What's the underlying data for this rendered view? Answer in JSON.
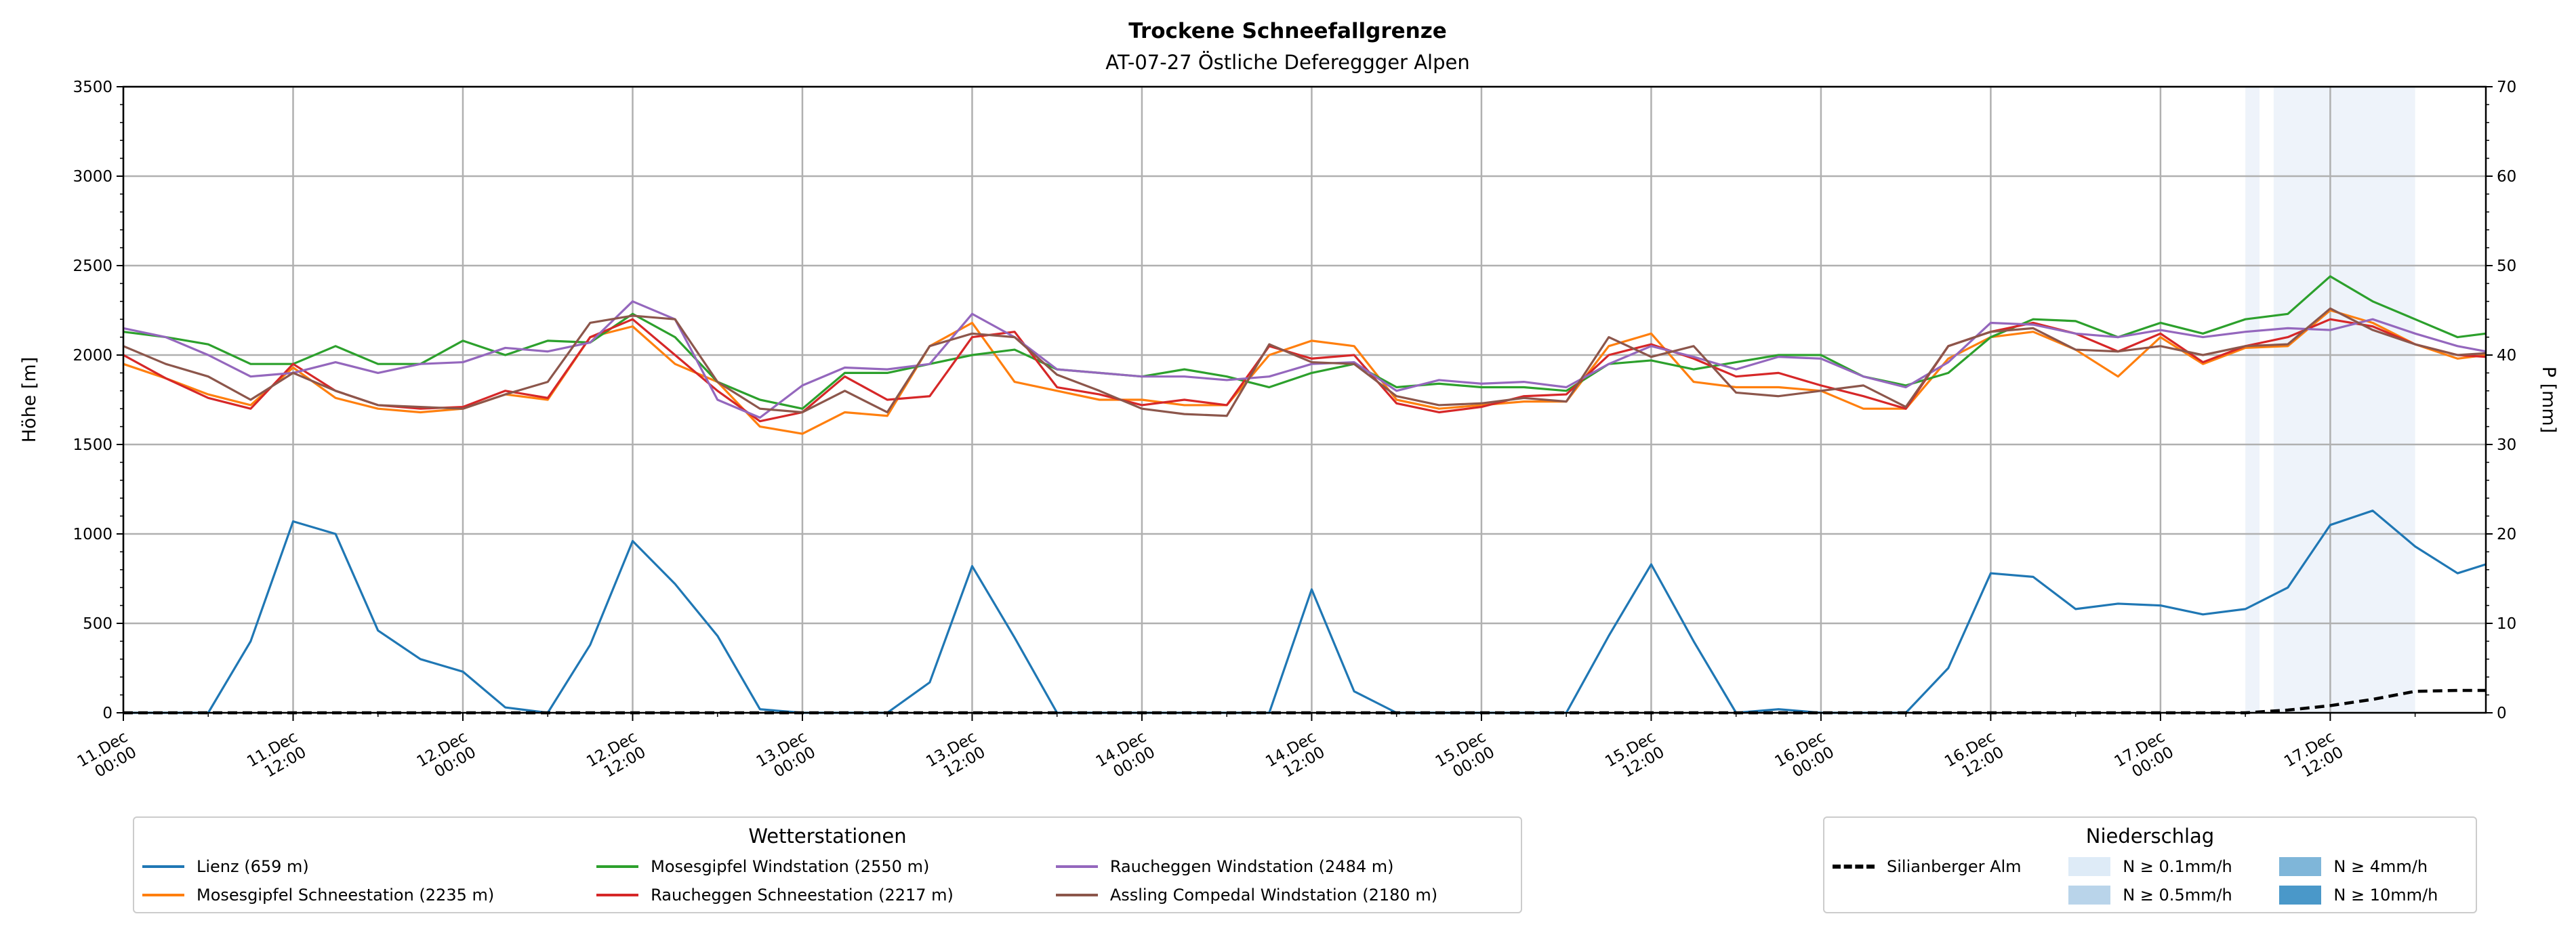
{
  "chart_data": {
    "type": "line",
    "title": "Trockene Schneefallgrenze",
    "subtitle": "AT-07-27 Östliche Defereggger Alpen",
    "ylabel": "Höhe [m]",
    "y2label": "P [mm]",
    "ylim": [
      0,
      3500
    ],
    "y2lim": [
      0,
      70
    ],
    "yticks": [
      0,
      500,
      1000,
      1500,
      2000,
      2500,
      3000,
      3500
    ],
    "y2ticks": [
      0,
      10,
      20,
      30,
      40,
      50,
      60,
      70
    ],
    "xlim_hours": [
      0,
      167
    ],
    "xticks": [
      {
        "h": 0,
        "l1": "11.Dec",
        "l2": "00:00"
      },
      {
        "h": 12,
        "l1": "11.Dec",
        "l2": "12:00"
      },
      {
        "h": 24,
        "l1": "12.Dec",
        "l2": "00:00"
      },
      {
        "h": 36,
        "l1": "12.Dec",
        "l2": "12:00"
      },
      {
        "h": 48,
        "l1": "13.Dec",
        "l2": "00:00"
      },
      {
        "h": 60,
        "l1": "13.Dec",
        "l2": "12:00"
      },
      {
        "h": 72,
        "l1": "14.Dec",
        "l2": "00:00"
      },
      {
        "h": 84,
        "l1": "14.Dec",
        "l2": "12:00"
      },
      {
        "h": 96,
        "l1": "15.Dec",
        "l2": "00:00"
      },
      {
        "h": 108,
        "l1": "15.Dec",
        "l2": "12:00"
      },
      {
        "h": 120,
        "l1": "16.Dec",
        "l2": "00:00"
      },
      {
        "h": 132,
        "l1": "16.Dec",
        "l2": "12:00"
      },
      {
        "h": 144,
        "l1": "17.Dec",
        "l2": "00:00"
      },
      {
        "h": 156,
        "l1": "17.Dec",
        "l2": "12:00"
      }
    ],
    "grid": true,
    "x_hours": [
      0,
      3,
      6,
      9,
      12,
      15,
      18,
      21,
      24,
      27,
      30,
      33,
      36,
      39,
      42,
      45,
      48,
      51,
      54,
      57,
      60,
      63,
      66,
      69,
      72,
      75,
      78,
      81,
      84,
      87,
      90,
      93,
      96,
      99,
      102,
      105,
      108,
      111,
      114,
      117,
      120,
      123,
      126,
      129,
      132,
      135,
      138,
      141,
      144,
      147,
      150,
      153,
      156,
      159,
      162,
      165,
      167
    ],
    "series": [
      {
        "name": "Lienz (659 m)",
        "color": "#1f77b4",
        "values": [
          0,
          0,
          0,
          400,
          1070,
          1000,
          460,
          300,
          230,
          30,
          0,
          380,
          960,
          720,
          430,
          20,
          0,
          0,
          0,
          170,
          820,
          420,
          0,
          0,
          0,
          0,
          0,
          0,
          690,
          120,
          0,
          0,
          0,
          0,
          0,
          430,
          830,
          400,
          0,
          20,
          0,
          0,
          0,
          250,
          780,
          760,
          580,
          610,
          600,
          550,
          580,
          700,
          1050,
          1130,
          930,
          780,
          830
        ]
      },
      {
        "name": "Mosesgipfel Schneestation (2235 m)",
        "color": "#ff7f0e",
        "values": [
          1950,
          1870,
          1780,
          1720,
          1930,
          1760,
          1700,
          1680,
          1700,
          1780,
          1750,
          2100,
          2160,
          1950,
          1850,
          1600,
          1560,
          1680,
          1660,
          2050,
          2180,
          1850,
          1800,
          1750,
          1750,
          1720,
          1720,
          2000,
          2080,
          2050,
          1750,
          1700,
          1720,
          1740,
          1740,
          2050,
          2120,
          1850,
          1820,
          1820,
          1800,
          1700,
          1700,
          1980,
          2100,
          2130,
          2030,
          1880,
          2100,
          1950,
          2040,
          2050,
          2250,
          2180,
          2060,
          1980,
          2000
        ]
      },
      {
        "name": "Mosesgipfel Windstation (2550 m)",
        "color": "#2ca02c",
        "values": [
          2130,
          2100,
          2060,
          1950,
          1950,
          2050,
          1950,
          1950,
          2080,
          2000,
          2080,
          2070,
          2230,
          2100,
          1850,
          1750,
          1700,
          1900,
          1900,
          1950,
          2000,
          2030,
          1920,
          1900,
          1880,
          1920,
          1880,
          1820,
          1900,
          1950,
          1820,
          1840,
          1820,
          1820,
          1800,
          1950,
          1970,
          1920,
          1960,
          2000,
          2000,
          1880,
          1830,
          1900,
          2100,
          2200,
          2190,
          2100,
          2180,
          2120,
          2200,
          2230,
          2440,
          2300,
          2200,
          2100,
          2120
        ]
      },
      {
        "name": "Raucheggen Schneestation (2217 m)",
        "color": "#d62728",
        "values": [
          2000,
          1870,
          1760,
          1700,
          1950,
          1800,
          1720,
          1700,
          1710,
          1800,
          1760,
          2100,
          2200,
          2000,
          1800,
          1630,
          1680,
          1880,
          1750,
          1770,
          2100,
          2130,
          1820,
          1780,
          1720,
          1750,
          1720,
          2050,
          1980,
          2000,
          1730,
          1680,
          1710,
          1770,
          1780,
          2000,
          2060,
          1980,
          1880,
          1900,
          1830,
          1770,
          1700,
          2050,
          2130,
          2180,
          2120,
          2020,
          2120,
          1960,
          2050,
          2100,
          2200,
          2160,
          2060,
          2000,
          1990
        ]
      },
      {
        "name": "Raucheggen Windstation (2484 m)",
        "color": "#9467bd",
        "values": [
          2150,
          2100,
          2000,
          1880,
          1900,
          1960,
          1900,
          1950,
          1960,
          2040,
          2020,
          2070,
          2300,
          2200,
          1750,
          1650,
          1830,
          1930,
          1920,
          1950,
          2230,
          2100,
          1920,
          1900,
          1880,
          1880,
          1860,
          1880,
          1950,
          1960,
          1800,
          1860,
          1840,
          1850,
          1820,
          1950,
          2050,
          1990,
          1920,
          1990,
          1980,
          1880,
          1820,
          1960,
          2180,
          2170,
          2120,
          2100,
          2140,
          2100,
          2130,
          2150,
          2140,
          2200,
          2120,
          2050,
          2020
        ]
      },
      {
        "name": "Assling Compedal Windstation (2180 m)",
        "color": "#8c564b",
        "values": [
          2050,
          1950,
          1880,
          1750,
          1900,
          1800,
          1720,
          1710,
          1700,
          1780,
          1850,
          2180,
          2220,
          2200,
          1850,
          1700,
          1680,
          1800,
          1680,
          2050,
          2120,
          2100,
          1890,
          1800,
          1700,
          1670,
          1660,
          2060,
          1960,
          1950,
          1770,
          1720,
          1730,
          1760,
          1740,
          2100,
          1990,
          2050,
          1790,
          1770,
          1800,
          1830,
          1710,
          2050,
          2130,
          2150,
          2030,
          2020,
          2050,
          2000,
          2050,
          2060,
          2260,
          2140,
          2060,
          2000,
          2010
        ]
      }
    ],
    "precip_series": {
      "name": "Silianberger Alm",
      "color": "#000000",
      "axis": "right",
      "unit": "mm",
      "values": [
        0,
        0,
        0,
        0,
        0,
        0,
        0,
        0,
        0,
        0,
        0,
        0,
        0,
        0,
        0,
        0,
        0,
        0,
        0,
        0,
        0,
        0,
        0,
        0,
        0,
        0,
        0,
        0,
        0,
        0,
        0,
        0,
        0,
        0,
        0,
        0,
        0,
        0,
        0,
        0,
        0,
        0,
        0,
        0,
        0,
        0,
        0,
        0,
        0,
        0,
        0,
        0.3,
        0.8,
        1.5,
        2.4,
        2.5,
        2.5
      ]
    },
    "precip_bands": [
      {
        "from_h": 150,
        "to_h": 151,
        "class": "N ≥ 0.1mm/h"
      },
      {
        "from_h": 152,
        "to_h": 162,
        "class": "N ≥ 0.1mm/h"
      }
    ],
    "legend_stations": {
      "title": "Wetterstationen",
      "placement": "bottom-left"
    },
    "legend_precip": {
      "title": "Niederschlag",
      "placement": "bottom-right",
      "items": [
        {
          "label": "N ≥ 0.1mm/h",
          "color": "#deebf7"
        },
        {
          "label": "N ≥ 4mm/h",
          "color": "#7fb6d9"
        },
        {
          "label": "N ≥ 0.5mm/h",
          "color": "#b9d4ea"
        },
        {
          "label": "N ≥ 10mm/h",
          "color": "#4a98c9"
        }
      ]
    }
  }
}
